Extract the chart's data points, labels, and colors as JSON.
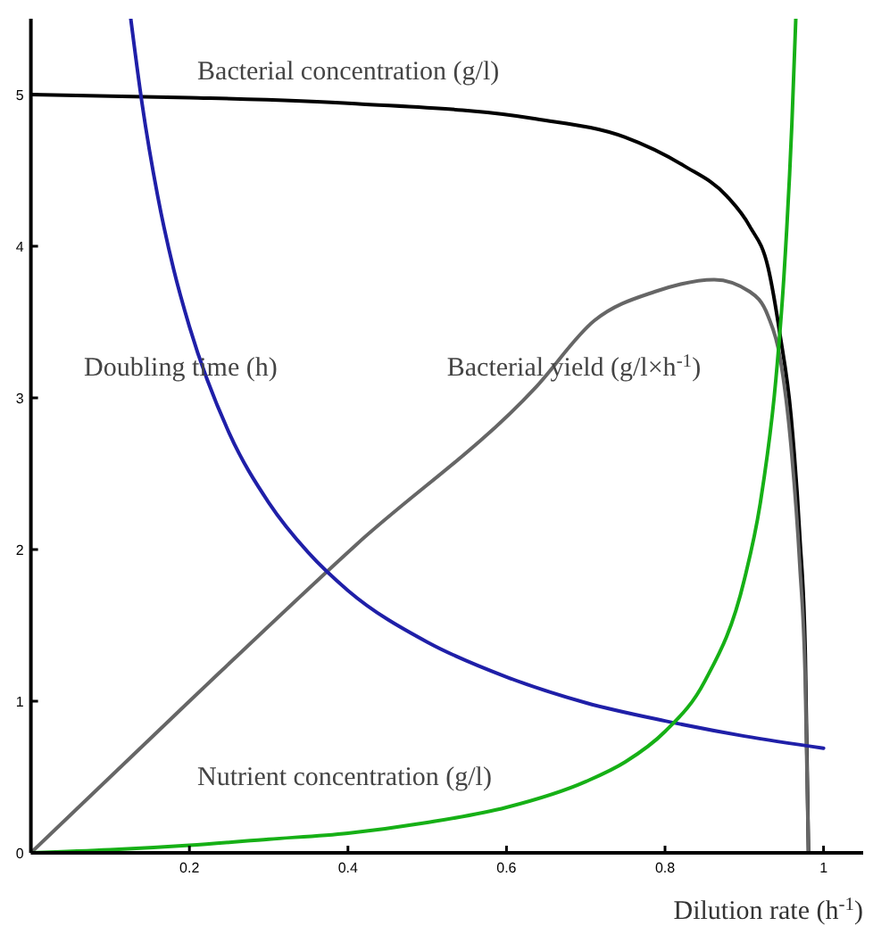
{
  "chart_data": {
    "type": "line",
    "xlabel": "Dilution rate (h$^{-1}$)",
    "xlim": [
      0,
      1.05
    ],
    "ylim": [
      0,
      5.5
    ],
    "xticks": [
      0.2,
      0.4,
      0.6,
      0.8,
      1
    ],
    "yticks": [
      0,
      1,
      2,
      3,
      4,
      5
    ],
    "grid": false,
    "marker": "none",
    "line_style": "solid",
    "series": [
      {
        "color": "#000000",
        "x": [
          0,
          0.2,
          0.41,
          0.637,
          0.749,
          0.824,
          0.878,
          0.907,
          0.93,
          0.945,
          0.959,
          0.97,
          0.977,
          0.981
        ],
        "values": [
          5.0,
          4.98,
          4.94,
          4.84,
          4.72,
          4.53,
          4.33,
          4.13,
          3.86,
          3.42,
          2.88,
          2.09,
          1.31,
          0
        ]
      },
      {
        "color": "#666666",
        "x": [
          0,
          0.2,
          0.41,
          0.637,
          0.711,
          0.787,
          0.862,
          0.907,
          0.93,
          0.945,
          0.959,
          0.97,
          0.977,
          0.981
        ],
        "values": [
          0,
          1.0,
          2.03,
          3.07,
          3.51,
          3.7,
          3.78,
          3.7,
          3.54,
          3.27,
          2.68,
          1.9,
          1.12,
          0
        ]
      },
      {
        "color": "#1f1fa8",
        "x": [
          0.126,
          0.14,
          0.16,
          0.18,
          0.2,
          0.25,
          0.3,
          0.35,
          0.4,
          0.5,
          0.6,
          0.7,
          0.8,
          0.9,
          1.0
        ],
        "values": [
          5.5,
          4.95,
          4.33,
          3.85,
          3.47,
          2.77,
          2.31,
          1.98,
          1.73,
          1.39,
          1.16,
          0.99,
          0.87,
          0.77,
          0.69
        ]
      },
      {
        "color": "#16b016",
        "x": [
          0,
          0.1,
          0.2,
          0.3,
          0.4,
          0.5,
          0.6,
          0.7,
          0.75,
          0.8,
          0.85,
          0.9,
          0.92,
          0.94,
          0.95,
          0.96,
          0.965
        ],
        "values": [
          0,
          0.02,
          0.05,
          0.09,
          0.13,
          0.2,
          0.3,
          0.47,
          0.6,
          0.8,
          1.13,
          1.8,
          2.3,
          3.13,
          3.8,
          4.8,
          5.5
        ]
      }
    ],
    "annotations": [
      "Bacterial concentration (g/l)",
      "Doubling time (h)",
      "Bacterial yield (g/l×h$^{-1}$)",
      "Nutrient concentration (g/l)"
    ]
  }
}
